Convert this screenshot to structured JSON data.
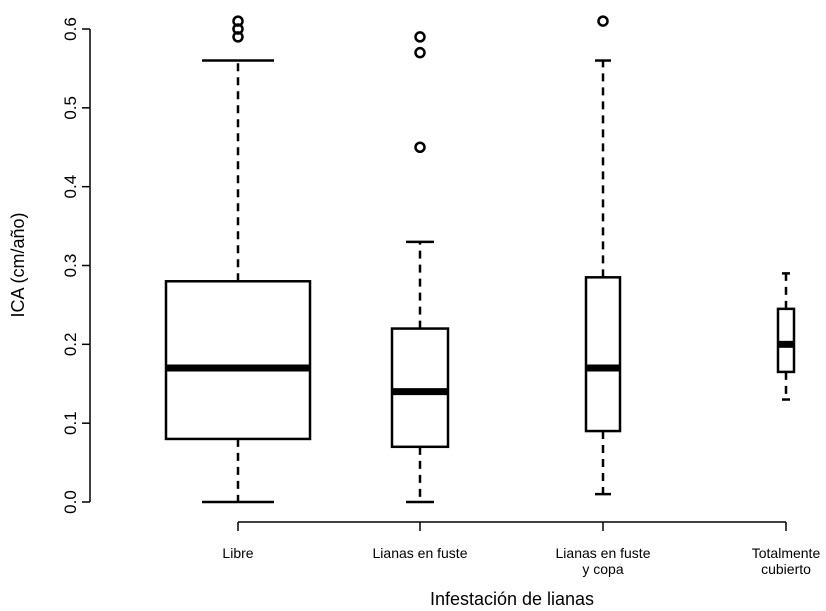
{
  "chart_data": {
    "type": "boxplot",
    "title": "",
    "xlabel": "Infestación de lianas",
    "ylabel": "ICA (cm/año)",
    "ylim": [
      0,
      0.6
    ],
    "yticks": [
      "0.0",
      "0.1",
      "0.2",
      "0.3",
      "0.4",
      "0.5",
      "0.6"
    ],
    "grid": false,
    "categories": [
      [
        "Libre"
      ],
      [
        "Lianas en fuste"
      ],
      [
        "Lianas en fuste",
        "y copa"
      ],
      [
        "Totalmente",
        "cubierto"
      ]
    ],
    "boxes": [
      {
        "whisker_low": 0.0,
        "q1": 0.08,
        "median": 0.17,
        "q3": 0.28,
        "whisker_high": 0.56,
        "outliers": [
          0.59,
          0.6,
          0.61
        ]
      },
      {
        "whisker_low": 0.0,
        "q1": 0.07,
        "median": 0.14,
        "q3": 0.22,
        "whisker_high": 0.33,
        "outliers": [
          0.45,
          0.57,
          0.59
        ]
      },
      {
        "whisker_low": 0.01,
        "q1": 0.09,
        "median": 0.17,
        "q3": 0.285,
        "whisker_high": 0.56,
        "outliers": [
          0.61
        ]
      },
      {
        "whisker_low": 0.13,
        "q1": 0.165,
        "median": 0.2,
        "q3": 0.245,
        "whisker_high": 0.29,
        "outliers": []
      }
    ],
    "color_fill": "#ffffff",
    "color_stroke": "#000000"
  }
}
